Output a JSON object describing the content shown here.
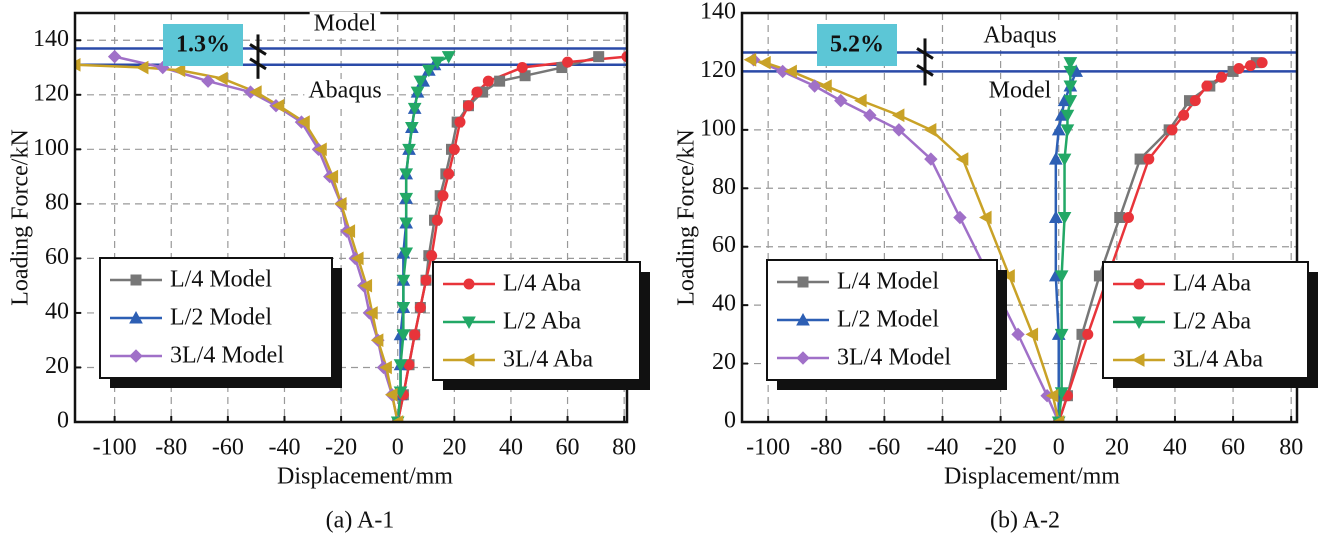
{
  "chart_data": [
    {
      "type": "line",
      "title": "(a) A-1",
      "xlabel": "Displacement/mm",
      "ylabel": "Loading Force/kN",
      "xlim": [
        -114,
        81
      ],
      "ylim": [
        0,
        150
      ],
      "xticks": [
        -100,
        -80,
        -60,
        -40,
        -20,
        0,
        20,
        40,
        60,
        80
      ],
      "yticks": [
        0,
        20,
        40,
        60,
        80,
        100,
        120,
        140
      ],
      "grid": true,
      "hlines": [
        {
          "value": 137,
          "color": "#2a4aa8"
        },
        {
          "value": 131,
          "color": "#2a4aa8"
        }
      ],
      "annotations": [
        "1.3%",
        "Model",
        "Abaqus"
      ],
      "series": [
        {
          "name": "L/4 Model",
          "color": "#777777",
          "marker": "square",
          "x": [
            0,
            2,
            4,
            6,
            8,
            10,
            11,
            13,
            15,
            17,
            19,
            21,
            25,
            30,
            36,
            45,
            58,
            71
          ],
          "values": [
            0,
            10,
            21,
            32,
            42,
            52,
            61,
            74,
            83,
            91,
            100,
            110,
            116,
            121,
            125,
            127,
            130,
            134
          ]
        },
        {
          "name": "L/2 Model",
          "color": "#2d5fb4",
          "marker": "triangle",
          "x": [
            0,
            1,
            1,
            1,
            2,
            2,
            2,
            3,
            3,
            3,
            4,
            5,
            6,
            7,
            9,
            11,
            13
          ],
          "values": [
            0,
            10,
            21,
            32,
            42,
            52,
            62,
            73,
            82,
            91,
            100,
            108,
            115,
            121,
            125,
            129,
            131
          ]
        },
        {
          "name": "3L/4 Model",
          "color": "#a070c8",
          "marker": "diamond",
          "x": [
            0,
            -2,
            -5,
            -7,
            -10,
            -12,
            -15,
            -18,
            -20,
            -24,
            -28,
            -34,
            -43,
            -52,
            -67,
            -83,
            -100
          ],
          "values": [
            0,
            10,
            20,
            30,
            40,
            50,
            60,
            70,
            80,
            90,
            100,
            110,
            116,
            121,
            125,
            130,
            134
          ]
        },
        {
          "name": "L/4 Aba",
          "color": "#e8343a",
          "marker": "circle",
          "x": [
            0,
            2,
            4,
            6,
            8,
            10,
            12,
            14,
            16,
            18,
            20,
            22,
            25,
            28,
            32,
            44,
            60,
            81
          ],
          "values": [
            0,
            10,
            21,
            32,
            42,
            52,
            61,
            74,
            83,
            91,
            100,
            110,
            116,
            121,
            125,
            130,
            132,
            134
          ]
        },
        {
          "name": "L/2 Aba",
          "color": "#22a866",
          "marker": "down",
          "x": [
            0,
            1,
            1,
            2,
            2,
            2,
            3,
            3,
            3,
            3,
            4,
            5,
            6,
            7,
            8,
            11,
            14,
            18
          ],
          "values": [
            0,
            11,
            21,
            32,
            42,
            52,
            62,
            73,
            82,
            91,
            100,
            108,
            115,
            121,
            125,
            129,
            132,
            134
          ]
        },
        {
          "name": "3L/4 Aba",
          "color": "#c9a227",
          "marker": "left",
          "x": [
            0,
            -2,
            -4,
            -7,
            -9,
            -11,
            -14,
            -17,
            -20,
            -23,
            -27,
            -33,
            -42,
            -50,
            -62,
            -77,
            -90,
            -114
          ],
          "values": [
            0,
            10,
            20,
            30,
            40,
            50,
            60,
            70,
            80,
            90,
            100,
            110,
            116,
            121,
            126,
            129,
            130,
            131
          ]
        }
      ]
    },
    {
      "type": "line",
      "title": "(b) A-2",
      "xlabel": "Displacement/mm",
      "ylabel": "Loading Force/kN",
      "xlim": [
        -109,
        82
      ],
      "ylim": [
        0,
        140
      ],
      "xticks": [
        -100,
        -80,
        -60,
        -40,
        -20,
        0,
        20,
        40,
        60,
        80
      ],
      "yticks": [
        0,
        20,
        40,
        60,
        80,
        100,
        120,
        140
      ],
      "grid": true,
      "hlines": [
        {
          "value": 126.5,
          "color": "#2a4aa8"
        },
        {
          "value": 120,
          "color": "#2a4aa8"
        }
      ],
      "annotations": [
        "5.2%",
        "Abaqus",
        "Model"
      ],
      "series": [
        {
          "name": "L/4 Model",
          "color": "#777777",
          "marker": "square",
          "x": [
            0,
            3,
            8,
            14,
            21,
            28,
            38,
            45,
            52,
            60,
            68
          ],
          "values": [
            0,
            9,
            30,
            50,
            70,
            90,
            100,
            110,
            115,
            120,
            123
          ]
        },
        {
          "name": "L/2 Model",
          "color": "#2d5fb4",
          "marker": "triangle",
          "x": [
            0,
            0,
            0,
            -1,
            -1,
            -1,
            0,
            1,
            2,
            4,
            6
          ],
          "values": [
            0,
            10,
            30,
            50,
            70,
            90,
            100,
            105,
            110,
            115,
            120
          ]
        },
        {
          "name": "3L/4 Model",
          "color": "#a070c8",
          "marker": "diamond",
          "x": [
            0,
            -4,
            -14,
            -24,
            -34,
            -44,
            -55,
            -65,
            -75,
            -84,
            -95,
            -105
          ],
          "values": [
            0,
            9,
            30,
            50,
            70,
            90,
            100,
            105,
            110,
            115,
            120,
            124
          ]
        },
        {
          "name": "L/4 Aba",
          "color": "#e8343a",
          "marker": "circle",
          "x": [
            0,
            3,
            10,
            17,
            24,
            31,
            39,
            43,
            47,
            51,
            56,
            62,
            66,
            70
          ],
          "values": [
            0,
            9,
            30,
            50,
            70,
            90,
            100,
            105,
            110,
            115,
            118,
            121,
            122,
            123
          ]
        },
        {
          "name": "L/2 Aba",
          "color": "#22a866",
          "marker": "down",
          "x": [
            0,
            1,
            1,
            1,
            2,
            2,
            3,
            3,
            4,
            4,
            4,
            4
          ],
          "values": [
            0,
            10,
            30,
            50,
            70,
            90,
            100,
            105,
            110,
            115,
            120,
            123
          ]
        },
        {
          "name": "3L/4 Aba",
          "color": "#c9a227",
          "marker": "left",
          "x": [
            0,
            -2,
            -9,
            -17,
            -25,
            -33,
            -44,
            -55,
            -68,
            -80,
            -92,
            -101,
            -106
          ],
          "values": [
            0,
            9,
            30,
            50,
            70,
            90,
            100,
            105,
            110,
            115,
            120,
            123,
            124
          ]
        }
      ]
    }
  ]
}
